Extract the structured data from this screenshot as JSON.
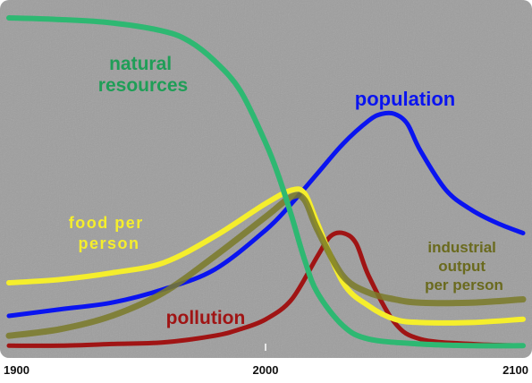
{
  "chart_data": {
    "type": "line",
    "title": "",
    "xlabel": "",
    "ylabel": "",
    "xlim": [
      1900,
      2100
    ],
    "ylim": [
      0,
      1
    ],
    "x_ticks": [
      "1900",
      "2000",
      "2100"
    ],
    "grid": false,
    "legend": "none",
    "background_color": "#9e9e9e",
    "series": [
      {
        "name": "natural resources",
        "color": "#2eb872",
        "label_lines": [
          "natural",
          "resources"
        ],
        "x": [
          1900,
          1920,
          1940,
          1960,
          1970,
          1980,
          1990,
          2000,
          2005,
          2010,
          2015,
          2020,
          2030,
          2040,
          2060,
          2080,
          2100
        ],
        "y": [
          1.0,
          0.995,
          0.985,
          0.96,
          0.93,
          0.87,
          0.78,
          0.62,
          0.52,
          0.4,
          0.27,
          0.17,
          0.07,
          0.03,
          0.015,
          0.01,
          0.01
        ]
      },
      {
        "name": "population",
        "color": "#0a14f0",
        "label_lines": [
          "population"
        ],
        "x": [
          1900,
          1920,
          1940,
          1960,
          1980,
          2000,
          2010,
          2020,
          2030,
          2040,
          2045,
          2050,
          2055,
          2060,
          2070,
          2080,
          2090,
          2100
        ],
        "y": [
          0.1,
          0.12,
          0.14,
          0.18,
          0.24,
          0.36,
          0.44,
          0.53,
          0.62,
          0.69,
          0.71,
          0.71,
          0.68,
          0.6,
          0.48,
          0.42,
          0.38,
          0.35
        ]
      },
      {
        "name": "food per person",
        "color": "#f5ee2c",
        "label_lines": [
          "food per",
          "person"
        ],
        "x": [
          1900,
          1920,
          1940,
          1960,
          1980,
          2000,
          2010,
          2015,
          2020,
          2030,
          2040,
          2050,
          2060,
          2080,
          2100
        ],
        "y": [
          0.2,
          0.21,
          0.23,
          0.26,
          0.34,
          0.44,
          0.48,
          0.47,
          0.38,
          0.2,
          0.13,
          0.09,
          0.08,
          0.08,
          0.09
        ]
      },
      {
        "name": "industrial output per person",
        "color": "#7a7a28",
        "label_lines": [
          "industrial",
          "output",
          "per person"
        ],
        "x": [
          1900,
          1920,
          1940,
          1960,
          1980,
          2000,
          2010,
          2015,
          2020,
          2030,
          2040,
          2050,
          2060,
          2080,
          2100
        ],
        "y": [
          0.04,
          0.06,
          0.1,
          0.17,
          0.28,
          0.4,
          0.46,
          0.45,
          0.36,
          0.22,
          0.17,
          0.15,
          0.14,
          0.14,
          0.15
        ]
      },
      {
        "name": "pollution",
        "color": "#a01414",
        "label_lines": [
          "pollution"
        ],
        "x": [
          1900,
          1920,
          1940,
          1960,
          1980,
          1990,
          2000,
          2010,
          2020,
          2025,
          2030,
          2035,
          2040,
          2050,
          2060,
          2080,
          2100
        ],
        "y": [
          0.01,
          0.01,
          0.015,
          0.02,
          0.04,
          0.06,
          0.09,
          0.15,
          0.28,
          0.34,
          0.35,
          0.32,
          0.22,
          0.08,
          0.03,
          0.015,
          0.01
        ]
      }
    ]
  }
}
